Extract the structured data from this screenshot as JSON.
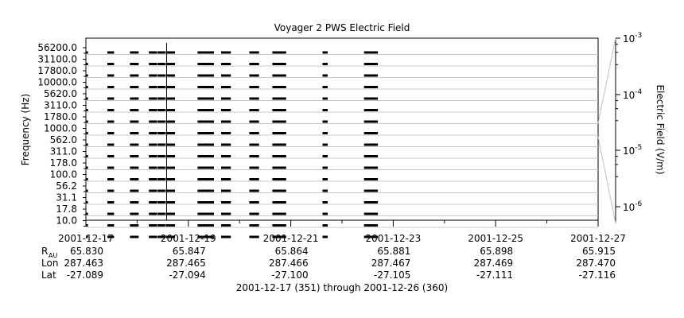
{
  "chart_data": {
    "type": "heatmap",
    "title": "Voyager 2 PWS Electric Field",
    "ylabel": "Frequency (Hz)",
    "colorbar_label": "Electric Field (V/m)",
    "footer": "2001-12-17 (351) through 2001-12-26 (360)",
    "frequency_channels_hz": [
      "56200.0",
      "31100.0",
      "17800.0",
      "10000.0",
      "5620.0",
      "3110.0",
      "1780.0",
      "1000.0",
      "562.0",
      "311.0",
      "178.0",
      "100.0",
      "56.2",
      "31.1",
      "17.8",
      "10.0"
    ],
    "y_scale": "log",
    "x_range": [
      "2001-12-17",
      "2001-12-27"
    ],
    "x_tick_labels": [
      "2001-12-17",
      "2001-12-19",
      "2001-12-21",
      "2001-12-23",
      "2001-12-25",
      "2001-12-27"
    ],
    "colorbar_scale": "log",
    "colorbar_range": [
      "1e-6",
      "1e-3"
    ],
    "colorbar_ticks": [
      {
        "mantissa": "10",
        "exp": "-3"
      },
      {
        "mantissa": "10",
        "exp": "-4"
      },
      {
        "mantissa": "10",
        "exp": "-5"
      },
      {
        "mantissa": "10",
        "exp": "-6"
      }
    ],
    "data_segments_days": [
      [
        0.0,
        0.04
      ],
      [
        0.42,
        0.55
      ],
      [
        0.86,
        1.03
      ],
      [
        1.23,
        1.39
      ],
      [
        1.4,
        1.55
      ],
      [
        1.56,
        1.74
      ],
      [
        2.18,
        2.5
      ],
      [
        2.64,
        2.83
      ],
      [
        3.19,
        3.38
      ],
      [
        3.64,
        3.91
      ],
      [
        4.62,
        4.72
      ],
      [
        5.43,
        5.7
      ]
    ],
    "vertical_marker_day": 1.56,
    "ephemeris": {
      "rows": [
        {
          "label": "R",
          "sub": "AU",
          "values": [
            "65.830",
            "65.847",
            "65.864",
            "65.881",
            "65.898",
            "65.915"
          ]
        },
        {
          "label": "Lon",
          "sub": "",
          "values": [
            "287.463",
            "287.465",
            "287.466",
            "287.467",
            "287.469",
            "287.470"
          ]
        },
        {
          "label": "Lat",
          "sub": "",
          "values": [
            "-27.089",
            "-27.094",
            "-27.100",
            "-27.105",
            "-27.111",
            "-27.116"
          ]
        }
      ]
    }
  }
}
